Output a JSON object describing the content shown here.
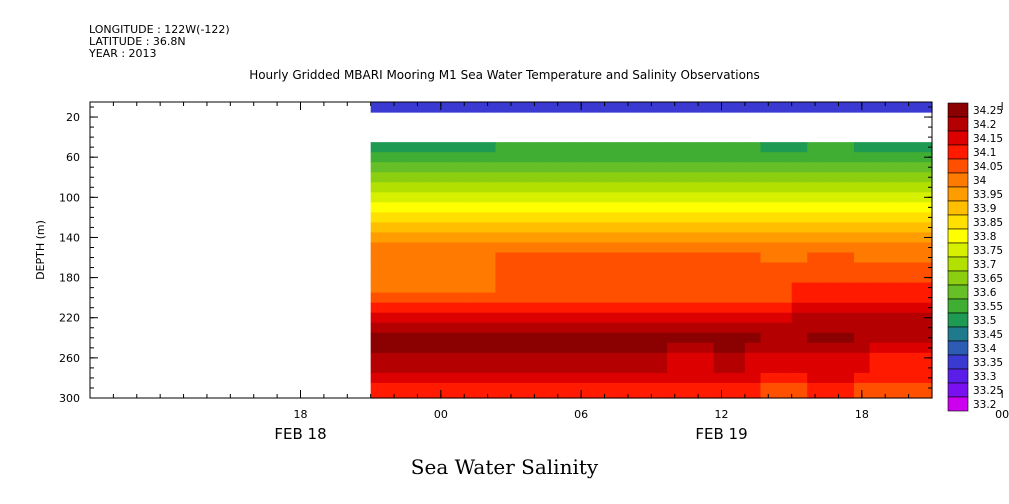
{
  "header": {
    "longitude": "LONGITUDE : 122W(-122)",
    "latitude": "LATITUDE : 36.8N",
    "year": "YEAR : 2013"
  },
  "title": "Hourly Gridded MBARI Mooring M1 Sea Water Temperature and Salinity Observations",
  "variable_title": "Sea Water Salinity",
  "chart_data": {
    "type": "heatmap",
    "title": "Hourly Gridded MBARI Mooring M1 Sea Water Temperature and Salinity Observations",
    "subtitle": "Sea Water Salinity",
    "ylabel": "DEPTH (m)",
    "xlabel": "",
    "x_range_hours": [
      -9,
      27
    ],
    "y_range_m": [
      300,
      5
    ],
    "y_inverted": true,
    "x_ticks": [
      {
        "hour": 0,
        "label": "18"
      },
      {
        "hour": 6,
        "label": "00"
      },
      {
        "hour": 12,
        "label": "06"
      },
      {
        "hour": 18,
        "label": "12"
      },
      {
        "hour": 24,
        "label": "18"
      },
      {
        "hour": 30,
        "label": "00"
      }
    ],
    "x_date_labels": [
      {
        "hour": 0,
        "label": "FEB 18"
      },
      {
        "hour": 18,
        "label": "FEB 19"
      }
    ],
    "y_ticks": [
      20,
      60,
      100,
      140,
      180,
      220,
      260,
      300
    ],
    "data_start_hour": 3,
    "depths": [
      10,
      40,
      50,
      60,
      70,
      80,
      90,
      100,
      110,
      120,
      130,
      140,
      150,
      160,
      170,
      180,
      190,
      200,
      210,
      220,
      230,
      240,
      250,
      260,
      270,
      280,
      290,
      300
    ],
    "profile_start": [
      33.35,
      null,
      33.5,
      33.55,
      33.6,
      33.65,
      33.7,
      33.75,
      33.8,
      33.85,
      33.9,
      33.95,
      34.0,
      34.0,
      34.0,
      34.0,
      34.0,
      34.05,
      34.1,
      34.15,
      34.2,
      34.25,
      34.25,
      34.2,
      34.2,
      34.15,
      34.1,
      34.1
    ],
    "profile_mid": [
      33.35,
      null,
      33.55,
      33.55,
      33.6,
      33.65,
      33.7,
      33.75,
      33.8,
      33.85,
      33.9,
      33.95,
      34.0,
      34.05,
      34.05,
      34.05,
      34.05,
      34.05,
      34.1,
      34.15,
      34.2,
      34.25,
      34.25,
      34.2,
      34.2,
      34.15,
      34.1,
      34.1
    ],
    "profile_end": [
      33.35,
      null,
      33.5,
      33.55,
      33.6,
      33.65,
      33.7,
      33.75,
      33.8,
      33.85,
      33.9,
      33.95,
      34.0,
      34.0,
      34.05,
      34.05,
      34.1,
      34.1,
      34.15,
      34.2,
      34.2,
      34.2,
      34.15,
      34.1,
      34.1,
      34.1,
      34.05,
      34.05
    ],
    "colorbar": {
      "labels": [
        "34.25",
        "34.2",
        "34.15",
        "34.1",
        "34.05",
        "34",
        "33.95",
        "33.9",
        "33.85",
        "33.8",
        "33.75",
        "33.7",
        "33.65",
        "33.6",
        "33.55",
        "33.5",
        "33.45",
        "33.4",
        "33.35",
        "33.3",
        "33.25",
        "33.2"
      ],
      "colors": [
        "#8b0000",
        "#b40000",
        "#dd0000",
        "#ff1a00",
        "#ff5000",
        "#ff7a00",
        "#ff9c00",
        "#ffbe00",
        "#ffe000",
        "#ffff00",
        "#d6f000",
        "#b2e000",
        "#8ccf10",
        "#66bf26",
        "#3fae33",
        "#1e9a52",
        "#1f7a8c",
        "#2c5cb3",
        "#3a3ad2",
        "#5a1ee8",
        "#7a10f0",
        "#cc00ee"
      ]
    },
    "grid": false,
    "legend_placement": "right"
  }
}
